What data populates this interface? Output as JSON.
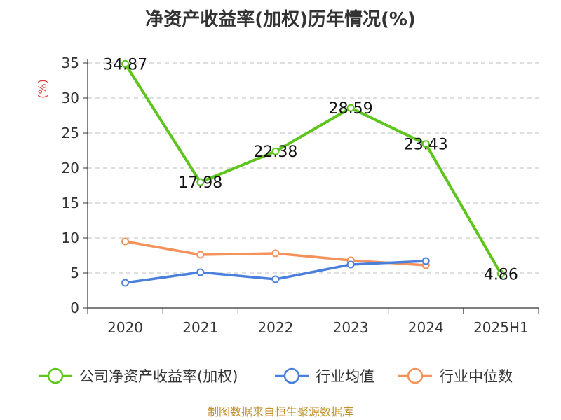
{
  "chart_data": {
    "type": "line",
    "title": "净资产收益率(加权)历年情况(%)",
    "ylabel": "(%)",
    "xlabel": "",
    "categories": [
      "2020",
      "2021",
      "2022",
      "2023",
      "2024",
      "2025H1"
    ],
    "ylim": [
      0,
      35
    ],
    "yticks": [
      0,
      5,
      10,
      15,
      20,
      25,
      30,
      35
    ],
    "grid": true,
    "legend_position": "bottom",
    "series": [
      {
        "name": "公司净资产收益率(加权)",
        "color": "#5ec51f",
        "values": [
          34.87,
          17.98,
          22.38,
          28.59,
          23.43,
          4.86
        ],
        "labels": [
          "34.87",
          "17.98",
          "22.38",
          "28.59",
          "23.43",
          "4.86"
        ]
      },
      {
        "name": "行业均值",
        "color": "#4a7fdc",
        "values": [
          3.6,
          5.1,
          4.1,
          6.2,
          6.7,
          null
        ]
      },
      {
        "name": "行业中位数",
        "color": "#f5915a",
        "values": [
          9.5,
          7.6,
          7.8,
          6.8,
          6.1,
          null
        ]
      }
    ],
    "source": "制图数据来自恒生聚源数据库"
  }
}
